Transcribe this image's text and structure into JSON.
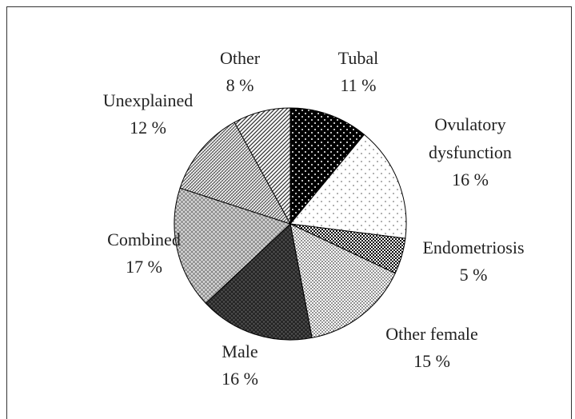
{
  "chart_data": {
    "type": "pie",
    "categories": [
      "Tubal",
      "Ovulatory dysfunction",
      "Endometriosis",
      "Other female",
      "Male",
      "Combined",
      "Unexplained",
      "Other"
    ],
    "values": [
      11,
      16,
      5,
      15,
      16,
      17,
      12,
      8
    ],
    "value_labels": [
      "11 %",
      "16 %",
      "5 %",
      "15 %",
      "16 %",
      "17 %",
      "12 %",
      "8 %"
    ]
  }
}
